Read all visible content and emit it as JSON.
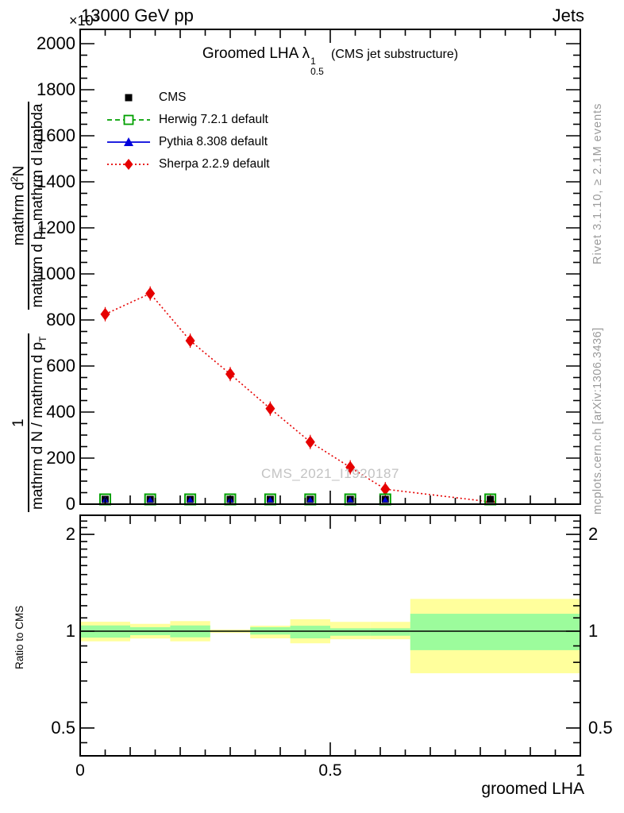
{
  "header": {
    "left": "13000 GeV pp",
    "right": "Jets",
    "y_multiplier_base": "×10",
    "y_multiplier_exp": "3"
  },
  "title": {
    "prefix": "Groomed LHA",
    "symbol": "λ",
    "sup": "1",
    "sub": "0.5",
    "suffix": "(CMS jet substructure)"
  },
  "legend": {
    "items": [
      {
        "label": "CMS",
        "marker": "filled-square",
        "line": "none",
        "color": "#000000"
      },
      {
        "label": "Herwig 7.2.1 default",
        "marker": "open-square",
        "line": "dashed",
        "color": "#00a000"
      },
      {
        "label": "Pythia 8.308 default",
        "marker": "filled-triangle",
        "line": "solid",
        "color": "#0000dc"
      },
      {
        "label": "Sherpa 2.2.9 default",
        "marker": "filled-diamond",
        "line": "dotted",
        "color": "#e60000"
      }
    ]
  },
  "watermark": "CMS_2021_I1920187",
  "side_notes": {
    "rivet": "Rivet 3.1.10, ≥ 2.1M events",
    "mcplots": "mcplots.cern.ch [arXiv:1306.3436]"
  },
  "y_axis_label": {
    "frac1_num": "1",
    "frac1_den": "mathrm d N / mathrm d p",
    "frac1_den_sub": "T",
    "frac2_num": "mathrm d",
    "frac2_num_sup": "2",
    "frac2_num_tail": "N",
    "frac2_den": "mathrm d p",
    "frac2_den_sub": "T",
    "frac2_den_tail": "mathrm d lambda"
  },
  "ratio_axis_label": "Ratio to CMS",
  "x_axis_label": "groomed LHA",
  "colors": {
    "frame": "#000000",
    "sherpa_red": "#e60000",
    "pythia_blue": "#0000dc",
    "herwig_green": "#00a000",
    "band_yellow": "#ffff9c",
    "band_green": "#9cfc9c",
    "gray_text": "#9a9a9a",
    "watermark": "#c3c3c3"
  },
  "axes": {
    "main_y": {
      "tick_values": [
        0,
        200,
        400,
        600,
        800,
        1000,
        1200,
        1400,
        1600,
        1800,
        2000
      ],
      "tick_labels": [
        "0",
        "200",
        "400",
        "600",
        "800",
        "1000",
        "1200",
        "1400",
        "1600",
        "1800",
        "2000"
      ],
      "minor_step": 50,
      "multiplier": "×10^3"
    },
    "x": {
      "tick_values": [
        0,
        0.5,
        1
      ],
      "tick_labels": [
        "0",
        "0.5",
        "1"
      ],
      "minor_step": 0.05,
      "range": [
        0,
        1
      ]
    },
    "ratio_y": {
      "tick_values": [
        0.5,
        1,
        2
      ],
      "tick_labels": [
        "0.5",
        "1",
        "2"
      ],
      "scale": "log",
      "range": [
        0.41,
        2.29
      ]
    }
  },
  "chart_data": {
    "type": "line",
    "title": "Groomed LHA λ^1_0.5 (CMS jet substructure)",
    "xlabel": "groomed LHA",
    "ylabel": "1/(dN/dp_T) d²N/(dp_T dlambda)",
    "y_unit": "×10³",
    "ylim": [
      0,
      2000
    ],
    "xlim": [
      0,
      1
    ],
    "bin_edges": [
      0,
      0.1,
      0.18,
      0.26,
      0.34,
      0.42,
      0.5,
      0.58,
      0.66,
      1.0
    ],
    "x": [
      0.05,
      0.14,
      0.22,
      0.3,
      0.38,
      0.46,
      0.54,
      0.61,
      0.82
    ],
    "series": [
      {
        "name": "CMS",
        "values": [
          0,
          0,
          0,
          0,
          0,
          0,
          0,
          0,
          0
        ]
      },
      {
        "name": "Herwig 7.2.1 default",
        "values": [
          0,
          0,
          0,
          0,
          0,
          0,
          0,
          0,
          0
        ]
      },
      {
        "name": "Pythia 8.308 default",
        "values": [
          0,
          0,
          0,
          0,
          0,
          0,
          0,
          0,
          0
        ]
      },
      {
        "name": "Sherpa 2.2.9 default",
        "values": [
          825,
          915,
          710,
          565,
          415,
          270,
          160,
          65,
          10
        ]
      }
    ],
    "ratio_panel": {
      "ylabel": "Ratio to CMS",
      "yscale": "log",
      "ylim": [
        0.41,
        2.29
      ],
      "reference_line": 1.0,
      "bands": [
        {
          "x0": 0.0,
          "x1": 0.1,
          "yellow": [
            0.93,
            1.07
          ],
          "green": [
            0.955,
            1.042
          ]
        },
        {
          "x0": 0.1,
          "x1": 0.18,
          "yellow": [
            0.949,
            1.054
          ],
          "green": [
            0.972,
            1.029
          ]
        },
        {
          "x0": 0.18,
          "x1": 0.26,
          "yellow": [
            0.93,
            1.075
          ],
          "green": [
            0.957,
            1.042
          ]
        },
        {
          "x0": 0.26,
          "x1": 0.34,
          "yellow": [
            0.988,
            1.012
          ],
          "green": [
            0.996,
            1.004
          ]
        },
        {
          "x0": 0.34,
          "x1": 0.42,
          "yellow": [
            0.95,
            1.04
          ],
          "green": [
            0.976,
            1.029
          ]
        },
        {
          "x0": 0.42,
          "x1": 0.5,
          "yellow": [
            0.917,
            1.089
          ],
          "green": [
            0.95,
            1.04
          ]
        },
        {
          "x0": 0.5,
          "x1": 0.58,
          "yellow": [
            0.944,
            1.069
          ],
          "green": [
            0.968,
            1.021
          ]
        },
        {
          "x0": 0.58,
          "x1": 0.66,
          "yellow": [
            0.944,
            1.069
          ],
          "green": [
            0.968,
            1.021
          ]
        },
        {
          "x0": 0.66,
          "x1": 1.0,
          "yellow": [
            0.74,
            1.26
          ],
          "green": [
            0.873,
            1.133
          ]
        }
      ]
    }
  }
}
